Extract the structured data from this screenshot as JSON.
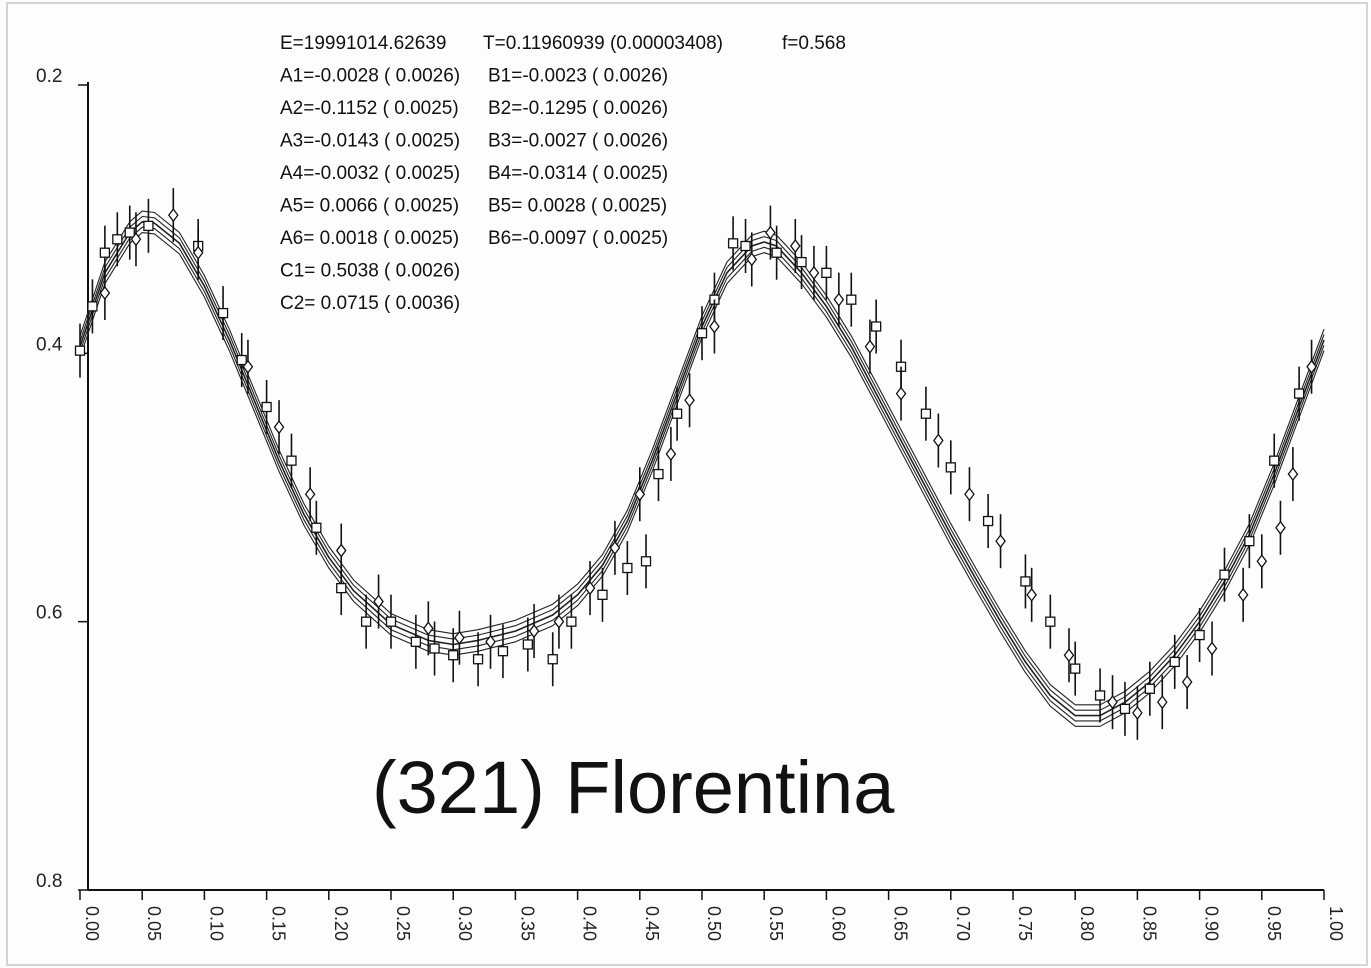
{
  "chart_data": {
    "type": "scatter",
    "title": "(321) Florentina",
    "xlabel": "",
    "ylabel": "",
    "xlim": [
      0.0,
      1.0
    ],
    "ylim": [
      0.2,
      0.8
    ],
    "y_inverted": true,
    "grid": false,
    "xticks": [
      "0.00",
      "0.05",
      "0.10",
      "0.15",
      "0.20",
      "0.25",
      "0.30",
      "0.35",
      "0.40",
      "0.45",
      "0.50",
      "0.55",
      "0.60",
      "0.65",
      "0.70",
      "0.75",
      "0.80",
      "0.85",
      "0.90",
      "0.95",
      "1.00"
    ],
    "yticks": [
      "0.2",
      "0.4",
      "0.6",
      "0.8"
    ],
    "parameters": [
      "E=19991014.62639",
      "T=0.11960939 (0.00003408)",
      "f=0.568",
      "A1=-0.0028 ( 0.0026)",
      "B1=-0.0023 ( 0.0026)",
      "A2=-0.1152 ( 0.0025)",
      "B2=-0.1295 ( 0.0026)",
      "A3=-0.0143 ( 0.0025)",
      "B3=-0.0027 ( 0.0026)",
      "A4=-0.0032 ( 0.0025)",
      "B4=-0.0314 ( 0.0025)",
      "A5= 0.0066 ( 0.0025)",
      "B5= 0.0028 ( 0.0025)",
      "A6= 0.0018 ( 0.0025)",
      "B6=-0.0097 ( 0.0025)",
      "C1= 0.5038 ( 0.0026)",
      "C2= 0.0715 ( 0.0036)"
    ],
    "fit_curve": {
      "x": [
        0.0,
        0.02,
        0.04,
        0.05,
        0.06,
        0.08,
        0.1,
        0.12,
        0.14,
        0.16,
        0.18,
        0.2,
        0.22,
        0.25,
        0.28,
        0.3,
        0.32,
        0.35,
        0.38,
        0.4,
        0.42,
        0.44,
        0.46,
        0.48,
        0.5,
        0.52,
        0.54,
        0.55,
        0.56,
        0.58,
        0.6,
        0.62,
        0.64,
        0.66,
        0.68,
        0.7,
        0.72,
        0.74,
        0.76,
        0.78,
        0.8,
        0.82,
        0.84,
        0.86,
        0.88,
        0.9,
        0.92,
        0.94,
        0.96,
        0.98,
        1.0
      ],
      "y": [
        0.395,
        0.34,
        0.31,
        0.302,
        0.303,
        0.318,
        0.35,
        0.39,
        0.435,
        0.48,
        0.52,
        0.552,
        0.577,
        0.602,
        0.614,
        0.617,
        0.614,
        0.607,
        0.595,
        0.58,
        0.558,
        0.525,
        0.48,
        0.43,
        0.38,
        0.34,
        0.32,
        0.317,
        0.32,
        0.34,
        0.365,
        0.395,
        0.43,
        0.465,
        0.5,
        0.535,
        0.568,
        0.6,
        0.63,
        0.655,
        0.67,
        0.67,
        0.66,
        0.645,
        0.625,
        0.6,
        0.57,
        0.535,
        0.49,
        0.44,
        0.39
      ]
    },
    "series": [
      {
        "marker": "square",
        "x": [
          0.0,
          0.01,
          0.02,
          0.03,
          0.04,
          0.055,
          0.095,
          0.115,
          0.13,
          0.15,
          0.17,
          0.19,
          0.21,
          0.23,
          0.25,
          0.27,
          0.285,
          0.3,
          0.32,
          0.34,
          0.36,
          0.38,
          0.395,
          0.42,
          0.44,
          0.455,
          0.465,
          0.48,
          0.5,
          0.51,
          0.525,
          0.535,
          0.56,
          0.58,
          0.6,
          0.62,
          0.64,
          0.66,
          0.68,
          0.7,
          0.73,
          0.76,
          0.78,
          0.8,
          0.82,
          0.84,
          0.86,
          0.88,
          0.9,
          0.92,
          0.94,
          0.96,
          0.98
        ],
        "y": [
          0.398,
          0.365,
          0.325,
          0.315,
          0.31,
          0.305,
          0.32,
          0.37,
          0.405,
          0.44,
          0.48,
          0.53,
          0.575,
          0.6,
          0.6,
          0.615,
          0.62,
          0.625,
          0.628,
          0.622,
          0.617,
          0.628,
          0.6,
          0.58,
          0.56,
          0.555,
          0.49,
          0.445,
          0.385,
          0.36,
          0.318,
          0.32,
          0.325,
          0.332,
          0.34,
          0.36,
          0.38,
          0.41,
          0.445,
          0.485,
          0.525,
          0.57,
          0.6,
          0.635,
          0.655,
          0.665,
          0.65,
          0.63,
          0.61,
          0.565,
          0.54,
          0.48,
          0.43
        ]
      },
      {
        "marker": "diamond",
        "x": [
          0.02,
          0.045,
          0.075,
          0.095,
          0.135,
          0.16,
          0.185,
          0.21,
          0.24,
          0.28,
          0.305,
          0.33,
          0.365,
          0.385,
          0.41,
          0.43,
          0.45,
          0.475,
          0.49,
          0.51,
          0.54,
          0.555,
          0.575,
          0.59,
          0.61,
          0.635,
          0.66,
          0.69,
          0.715,
          0.74,
          0.765,
          0.795,
          0.83,
          0.85,
          0.87,
          0.89,
          0.91,
          0.935,
          0.95,
          0.965,
          0.975,
          0.99
        ],
        "y": [
          0.355,
          0.315,
          0.297,
          0.325,
          0.41,
          0.455,
          0.505,
          0.547,
          0.585,
          0.605,
          0.612,
          0.615,
          0.607,
          0.6,
          0.575,
          0.545,
          0.505,
          0.475,
          0.435,
          0.38,
          0.33,
          0.31,
          0.32,
          0.34,
          0.36,
          0.395,
          0.43,
          0.465,
          0.505,
          0.54,
          0.58,
          0.625,
          0.66,
          0.668,
          0.66,
          0.645,
          0.62,
          0.58,
          0.555,
          0.53,
          0.49,
          0.41
        ]
      }
    ]
  }
}
